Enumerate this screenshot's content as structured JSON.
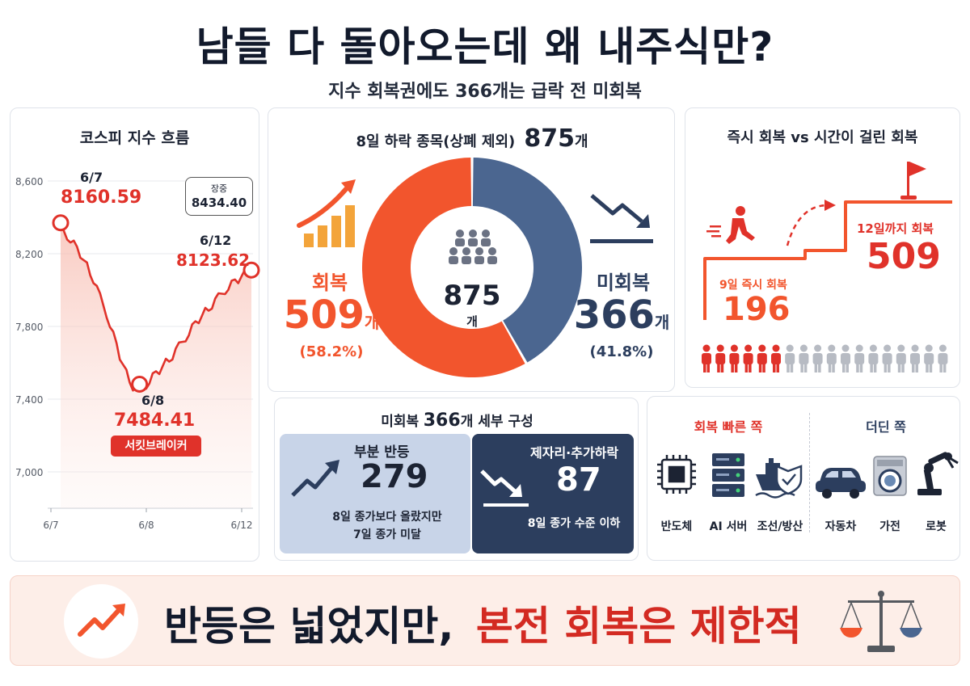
{
  "header": {
    "title": "남들 다 돌아오는데 왜 내주식만?",
    "subtitle": "지수 회복권에도 366개는 급락 전 미회복"
  },
  "kospi": {
    "title": "코스피 지수 흐름",
    "callout_label": "장중",
    "callout_value": "8434.40",
    "points": [
      {
        "date": "6/7",
        "value": "8160.59"
      },
      {
        "date": "6/8",
        "value": "7484.41"
      },
      {
        "date": "6/12",
        "value": "8123.62"
      }
    ],
    "badge": "서킷브레이커"
  },
  "chart_data": {
    "type": "line",
    "title": "코스피 지수 흐름",
    "x_ticks": [
      "6/7",
      "6/8",
      "6/12"
    ],
    "y_ticks": [
      "8,600",
      "8,200",
      "7,800",
      "7,400",
      "7,000"
    ],
    "ylim": [
      6980,
      8700
    ],
    "series": [
      {
        "values": [
          8370,
          8300,
          8250,
          8200,
          8130,
          8060,
          7960,
          7870,
          7750,
          7640,
          7540,
          7470,
          7460,
          7480,
          7520,
          7560,
          7600,
          7640,
          7690,
          7740,
          7790,
          7840,
          7880,
          7920,
          7960,
          8000,
          8030,
          8060,
          8090,
          8110
        ]
      }
    ],
    "annotations": [
      {
        "label": "6/7",
        "value": 8160.59
      },
      {
        "label": "6/8",
        "value": 7484.41
      },
      {
        "label": "6/12",
        "value": 8123.62
      }
    ]
  },
  "donut": {
    "heading": "8일 하락 종목(상폐 제외)",
    "heading_total": "875",
    "heading_unit": "개",
    "center_value": "875",
    "center_unit": "개",
    "recovered": {
      "label": "회복",
      "value": "509",
      "unit": "개",
      "pct": "(58.2%)",
      "fraction": 0.582,
      "color": "#f2552d"
    },
    "unrecovered": {
      "label": "미회복",
      "value": "366",
      "unit": "개",
      "pct": "(41.8%)",
      "fraction": 0.418,
      "color": "#4b6690"
    }
  },
  "timing": {
    "title": "즉시 회복 vs 시간이 걸린 회복",
    "immediate_label": "9일 즉시 회복",
    "immediate_value": "196",
    "later_label": "12일까지 회복",
    "later_value": "509",
    "people_highlight": 6,
    "people_total": 18
  },
  "breakdown": {
    "title_prefix": "미회복",
    "title_value": "366",
    "title_suffix": "개 세부 구성",
    "partial": {
      "label": "부분 반등",
      "value": "279",
      "desc1": "8일 종가보다 올랐지만",
      "desc2": "7일 종가 미달"
    },
    "down": {
      "label": "제자리·추가하락",
      "value": "87",
      "desc1": "8일 종가 수준 이하"
    }
  },
  "sectors": {
    "fast_title": "회복 빠른 쪽",
    "slow_title": "더딘 쪽",
    "fast": [
      "반도체",
      "AI 서버",
      "조선/방산"
    ],
    "slow": [
      "자동차",
      "가전",
      "로봇"
    ]
  },
  "footer": {
    "text_black": "반등은 넓었지만,",
    "text_red": "본전 회복은 제한적"
  },
  "colors": {
    "red": "#e0322a",
    "orange": "#f2552d",
    "navy": "#2c3e5e",
    "steel": "#4b6690"
  }
}
